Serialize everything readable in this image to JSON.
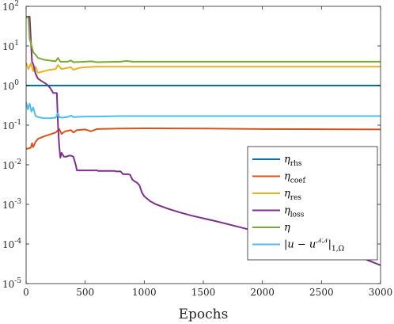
{
  "chart_data": {
    "type": "line",
    "title": "",
    "xlabel": "Epochs",
    "ylabel": "",
    "xlim": [
      0,
      3000
    ],
    "ylim": [
      1e-05,
      100
    ],
    "yscale": "log",
    "x_ticks": [
      0,
      500,
      1000,
      1500,
      2000,
      2500,
      3000
    ],
    "y_ticks": [
      {
        "value": 100,
        "base": "10",
        "exp": "2"
      },
      {
        "value": 10,
        "base": "10",
        "exp": "1"
      },
      {
        "value": 1,
        "base": "10",
        "exp": "0"
      },
      {
        "value": 0.1,
        "base": "10",
        "exp": "-1"
      },
      {
        "value": 0.01,
        "base": "10",
        "exp": "-2"
      },
      {
        "value": 0.001,
        "base": "10",
        "exp": "-3"
      },
      {
        "value": 0.0001,
        "base": "10",
        "exp": "-4"
      },
      {
        "value": 1e-05,
        "base": "10",
        "exp": "-5"
      }
    ],
    "grid": false,
    "legend_position": "bottom-right",
    "series": [
      {
        "name": "η_rhs",
        "legend_main": "η",
        "legend_sub": "rhs",
        "color": "#0072BD",
        "points": [
          [
            0,
            1.0
          ],
          [
            3000,
            1.0
          ]
        ]
      },
      {
        "name": "η_coef",
        "legend_main": "η",
        "legend_sub": "coef",
        "color": "#D95319",
        "points": [
          [
            0,
            0.025
          ],
          [
            20,
            0.026
          ],
          [
            40,
            0.027
          ],
          [
            50,
            0.035
          ],
          [
            60,
            0.028
          ],
          [
            80,
            0.038
          ],
          [
            100,
            0.045
          ],
          [
            150,
            0.052
          ],
          [
            200,
            0.058
          ],
          [
            250,
            0.065
          ],
          [
            280,
            0.08
          ],
          [
            300,
            0.06
          ],
          [
            330,
            0.07
          ],
          [
            380,
            0.075
          ],
          [
            400,
            0.065
          ],
          [
            430,
            0.075
          ],
          [
            500,
            0.078
          ],
          [
            550,
            0.07
          ],
          [
            600,
            0.08
          ],
          [
            800,
            0.082
          ],
          [
            1000,
            0.083
          ],
          [
            1500,
            0.082
          ],
          [
            2000,
            0.08
          ],
          [
            2500,
            0.079
          ],
          [
            3000,
            0.078
          ]
        ]
      },
      {
        "name": "η_res",
        "legend_main": "η",
        "legend_sub": "res",
        "color": "#EDB120",
        "points": [
          [
            0,
            3.8
          ],
          [
            20,
            2.6
          ],
          [
            40,
            3.6
          ],
          [
            60,
            2.3
          ],
          [
            80,
            3.0
          ],
          [
            100,
            2.1
          ],
          [
            150,
            2.3
          ],
          [
            200,
            2.5
          ],
          [
            250,
            2.6
          ],
          [
            270,
            3.3
          ],
          [
            300,
            2.6
          ],
          [
            350,
            2.8
          ],
          [
            380,
            2.9
          ],
          [
            400,
            2.5
          ],
          [
            450,
            2.8
          ],
          [
            500,
            2.9
          ],
          [
            600,
            3.0
          ],
          [
            800,
            3.0
          ],
          [
            1000,
            3.0
          ],
          [
            1500,
            3.0
          ],
          [
            2000,
            3.0
          ],
          [
            3000,
            3.0
          ]
        ]
      },
      {
        "name": "η_loss",
        "legend_main": "η",
        "legend_sub": "loss",
        "color": "#7E2F8E",
        "points": [
          [
            0,
            55
          ],
          [
            30,
            55
          ],
          [
            50,
            4
          ],
          [
            60,
            3.5
          ],
          [
            80,
            2
          ],
          [
            100,
            1.5
          ],
          [
            130,
            1.3
          ],
          [
            170,
            1.1
          ],
          [
            200,
            0.9
          ],
          [
            230,
            0.65
          ],
          [
            250,
            0.65
          ],
          [
            260,
            0.65
          ],
          [
            270,
            0.1
          ],
          [
            280,
            0.03
          ],
          [
            290,
            0.015
          ],
          [
            300,
            0.02
          ],
          [
            320,
            0.016
          ],
          [
            340,
            0.016
          ],
          [
            360,
            0.017
          ],
          [
            380,
            0.017
          ],
          [
            400,
            0.016
          ],
          [
            420,
            0.01
          ],
          [
            430,
            0.0072
          ],
          [
            440,
            0.0072
          ],
          [
            600,
            0.0072
          ],
          [
            610,
            0.007
          ],
          [
            750,
            0.007
          ],
          [
            760,
            0.0068
          ],
          [
            800,
            0.0068
          ],
          [
            820,
            0.0058
          ],
          [
            840,
            0.0058
          ],
          [
            860,
            0.0058
          ],
          [
            880,
            0.0056
          ],
          [
            900,
            0.0042
          ],
          [
            920,
            0.0038
          ],
          [
            940,
            0.0035
          ],
          [
            960,
            0.003
          ],
          [
            980,
            0.002
          ],
          [
            1000,
            0.0016
          ],
          [
            1050,
            0.0012
          ],
          [
            1100,
            0.001
          ],
          [
            1200,
            0.00078
          ],
          [
            1300,
            0.00063
          ],
          [
            1400,
            0.00052
          ],
          [
            1600,
            0.00038
          ],
          [
            1800,
            0.00027
          ],
          [
            2000,
            0.00019
          ],
          [
            2200,
            0.000135
          ],
          [
            2400,
            0.0001
          ],
          [
            2600,
            7.2e-05
          ],
          [
            2800,
            5e-05
          ],
          [
            3000,
            2.9e-05
          ]
        ]
      },
      {
        "name": "η",
        "legend_main": "η",
        "legend_sub": "",
        "color": "#77AC30",
        "points": [
          [
            0,
            55
          ],
          [
            20,
            50
          ],
          [
            30,
            15
          ],
          [
            40,
            12
          ],
          [
            60,
            7
          ],
          [
            80,
            6
          ],
          [
            100,
            5
          ],
          [
            150,
            4.5
          ],
          [
            200,
            4.3
          ],
          [
            250,
            4.1
          ],
          [
            270,
            5.0
          ],
          [
            290,
            4.0
          ],
          [
            350,
            4.0
          ],
          [
            380,
            4.3
          ],
          [
            400,
            3.9
          ],
          [
            500,
            4.0
          ],
          [
            550,
            4.1
          ],
          [
            600,
            3.9
          ],
          [
            800,
            4.0
          ],
          [
            850,
            4.2
          ],
          [
            900,
            4.0
          ],
          [
            1000,
            4.0
          ],
          [
            1500,
            4.0
          ],
          [
            2000,
            4.0
          ],
          [
            3000,
            4.0
          ]
        ]
      },
      {
        "name": "|u − u^NN|_1,Ω",
        "legend_main": "|u − u",
        "legend_sup": "𝒩𝒩",
        "legend_sub": "1,Ω",
        "color": "#4DBEEE",
        "points": [
          [
            0,
            0.38
          ],
          [
            15,
            0.25
          ],
          [
            30,
            0.35
          ],
          [
            45,
            0.22
          ],
          [
            60,
            0.28
          ],
          [
            80,
            0.17
          ],
          [
            100,
            0.16
          ],
          [
            150,
            0.15
          ],
          [
            200,
            0.15
          ],
          [
            250,
            0.155
          ],
          [
            270,
            0.2
          ],
          [
            280,
            0.16
          ],
          [
            300,
            0.155
          ],
          [
            350,
            0.16
          ],
          [
            380,
            0.175
          ],
          [
            400,
            0.16
          ],
          [
            500,
            0.165
          ],
          [
            600,
            0.165
          ],
          [
            800,
            0.17
          ],
          [
            1000,
            0.17
          ],
          [
            1500,
            0.17
          ],
          [
            2000,
            0.17
          ],
          [
            3000,
            0.17
          ]
        ]
      }
    ]
  }
}
